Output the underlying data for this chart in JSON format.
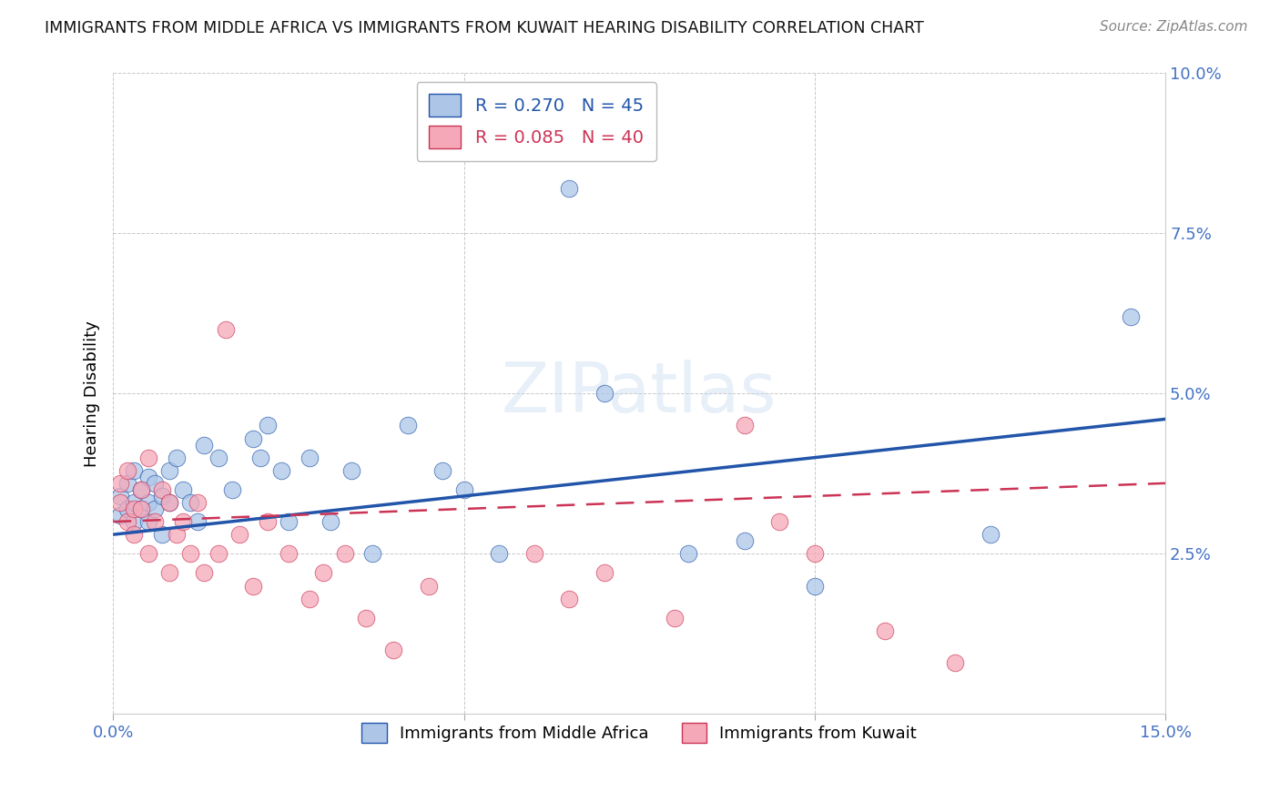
{
  "title": "IMMIGRANTS FROM MIDDLE AFRICA VS IMMIGRANTS FROM KUWAIT HEARING DISABILITY CORRELATION CHART",
  "source": "Source: ZipAtlas.com",
  "ylabel": "Hearing Disability",
  "xlim": [
    0.0,
    0.15
  ],
  "ylim": [
    0.0,
    0.1
  ],
  "series1_label": "Immigrants from Middle Africa",
  "series1_R": "0.270",
  "series1_N": "45",
  "series1_color": "#adc6e8",
  "series1_line_color": "#2255aa",
  "series2_label": "Immigrants from Kuwait",
  "series2_R": "0.085",
  "series2_N": "40",
  "series2_color": "#f5a8b8",
  "series2_line_color": "#cc3355",
  "background_color": "#ffffff",
  "grid_color": "#c8c8c8",
  "axis_color": "#4472c4",
  "title_color": "#111111",
  "series1_x": [
    0.001,
    0.001,
    0.002,
    0.002,
    0.003,
    0.003,
    0.003,
    0.004,
    0.004,
    0.005,
    0.005,
    0.005,
    0.006,
    0.006,
    0.007,
    0.007,
    0.008,
    0.008,
    0.009,
    0.01,
    0.011,
    0.012,
    0.013,
    0.015,
    0.017,
    0.02,
    0.021,
    0.022,
    0.024,
    0.025,
    0.028,
    0.031,
    0.034,
    0.037,
    0.042,
    0.047,
    0.05,
    0.055,
    0.065,
    0.07,
    0.082,
    0.09,
    0.1,
    0.125,
    0.145
  ],
  "series1_y": [
    0.031,
    0.034,
    0.032,
    0.036,
    0.033,
    0.03,
    0.038,
    0.032,
    0.035,
    0.033,
    0.037,
    0.03,
    0.036,
    0.032,
    0.034,
    0.028,
    0.033,
    0.038,
    0.04,
    0.035,
    0.033,
    0.03,
    0.042,
    0.04,
    0.035,
    0.043,
    0.04,
    0.045,
    0.038,
    0.03,
    0.04,
    0.03,
    0.038,
    0.025,
    0.045,
    0.038,
    0.035,
    0.025,
    0.082,
    0.05,
    0.025,
    0.027,
    0.02,
    0.028,
    0.062
  ],
  "series2_x": [
    0.001,
    0.001,
    0.002,
    0.002,
    0.003,
    0.003,
    0.004,
    0.004,
    0.005,
    0.005,
    0.006,
    0.007,
    0.008,
    0.008,
    0.009,
    0.01,
    0.011,
    0.012,
    0.013,
    0.015,
    0.016,
    0.018,
    0.02,
    0.022,
    0.025,
    0.028,
    0.03,
    0.033,
    0.036,
    0.04,
    0.045,
    0.06,
    0.065,
    0.07,
    0.08,
    0.09,
    0.095,
    0.1,
    0.11,
    0.12
  ],
  "series2_y": [
    0.033,
    0.036,
    0.03,
    0.038,
    0.032,
    0.028,
    0.035,
    0.032,
    0.04,
    0.025,
    0.03,
    0.035,
    0.033,
    0.022,
    0.028,
    0.03,
    0.025,
    0.033,
    0.022,
    0.025,
    0.06,
    0.028,
    0.02,
    0.03,
    0.025,
    0.018,
    0.022,
    0.025,
    0.015,
    0.01,
    0.02,
    0.025,
    0.018,
    0.022,
    0.015,
    0.045,
    0.03,
    0.025,
    0.013,
    0.008
  ],
  "line1_x0": 0.0,
  "line1_y0": 0.028,
  "line1_x1": 0.15,
  "line1_y1": 0.046,
  "line2_x0": 0.0,
  "line2_y0": 0.03,
  "line2_x1": 0.15,
  "line2_y1": 0.036
}
